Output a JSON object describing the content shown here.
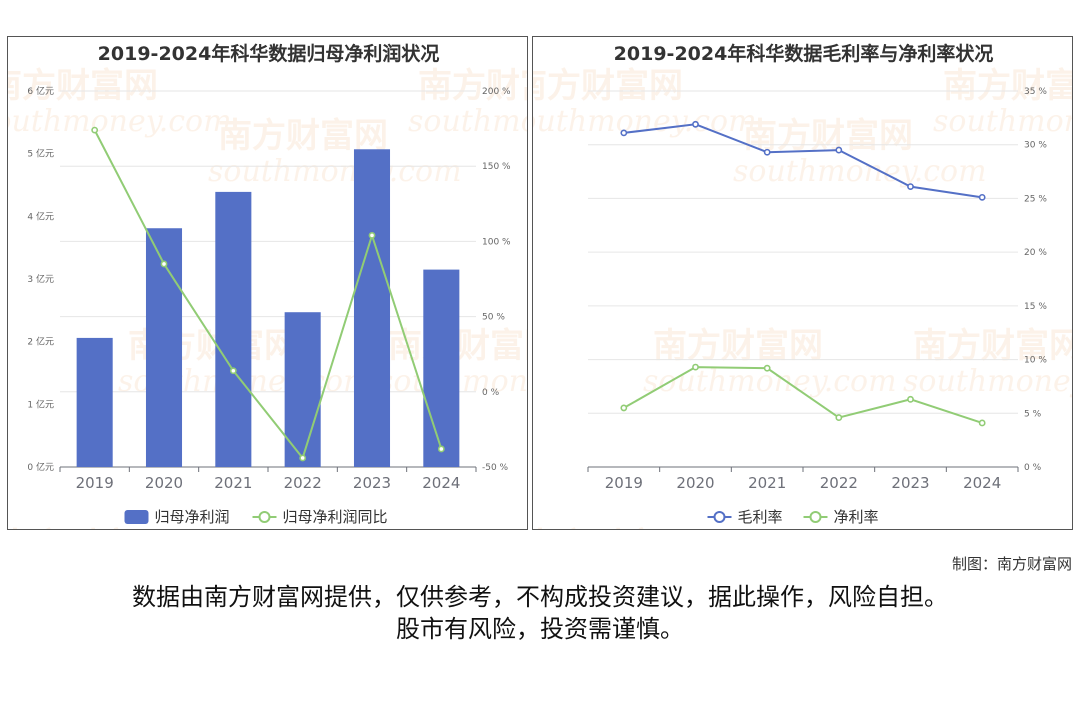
{
  "watermark": {
    "cn": "南方财富网",
    "en": "southmoney.com"
  },
  "charts": [
    {
      "title": "2019-2024年科华数据归母净利润状况",
      "chart_data": {
        "type": "bar",
        "categories": [
          "2019",
          "2020",
          "2021",
          "2022",
          "2023",
          "2024"
        ],
        "series": [
          {
            "name": "归母净利润",
            "kind": "bar",
            "axis": "left",
            "color": "#5470c6",
            "values": [
              2.06,
              3.81,
              4.39,
              2.47,
              5.07,
              3.15
            ]
          },
          {
            "name": "归母净利润同比",
            "kind": "line",
            "axis": "right",
            "color": "#91cc75",
            "values": [
              174,
              85,
              14,
              -44,
              104,
              -38
            ]
          }
        ],
        "y_left": {
          "ticks": [
            "0 亿元",
            "1 亿元",
            "2 亿元",
            "3 亿元",
            "4 亿元",
            "5 亿元",
            "6 亿元"
          ],
          "range": [
            0,
            6
          ]
        },
        "y_right": {
          "ticks": [
            "-50 %",
            "0 %",
            "50 %",
            "100 %",
            "150 %",
            "200 %"
          ],
          "range": [
            -50,
            200
          ]
        },
        "legend": "bottom",
        "grid": true
      }
    },
    {
      "title": "2019-2024年科华数据毛利率与净利率状况",
      "chart_data": {
        "type": "line",
        "categories": [
          "2019",
          "2020",
          "2021",
          "2022",
          "2023",
          "2024"
        ],
        "series": [
          {
            "name": "毛利率",
            "kind": "line",
            "axis": "right",
            "color": "#5470c6",
            "values": [
              31.1,
              31.9,
              29.3,
              29.5,
              26.1,
              25.1
            ]
          },
          {
            "name": "净利率",
            "kind": "line",
            "axis": "right",
            "color": "#91cc75",
            "values": [
              5.5,
              9.3,
              9.2,
              4.6,
              6.3,
              4.1
            ]
          }
        ],
        "y_right": {
          "ticks": [
            "0 %",
            "5 %",
            "10 %",
            "15 %",
            "20 %",
            "25 %",
            "30 %",
            "35 %"
          ],
          "range": [
            0,
            35
          ]
        },
        "legend": "bottom",
        "grid": true
      }
    }
  ],
  "footer": {
    "credit": "制图：南方财富网",
    "disclaimer_line1": "数据由南方财富网提供，仅供参考，不构成投资建议，据此操作，风险自担。",
    "disclaimer_line2": "股市有风险，投资需谨慎。"
  }
}
